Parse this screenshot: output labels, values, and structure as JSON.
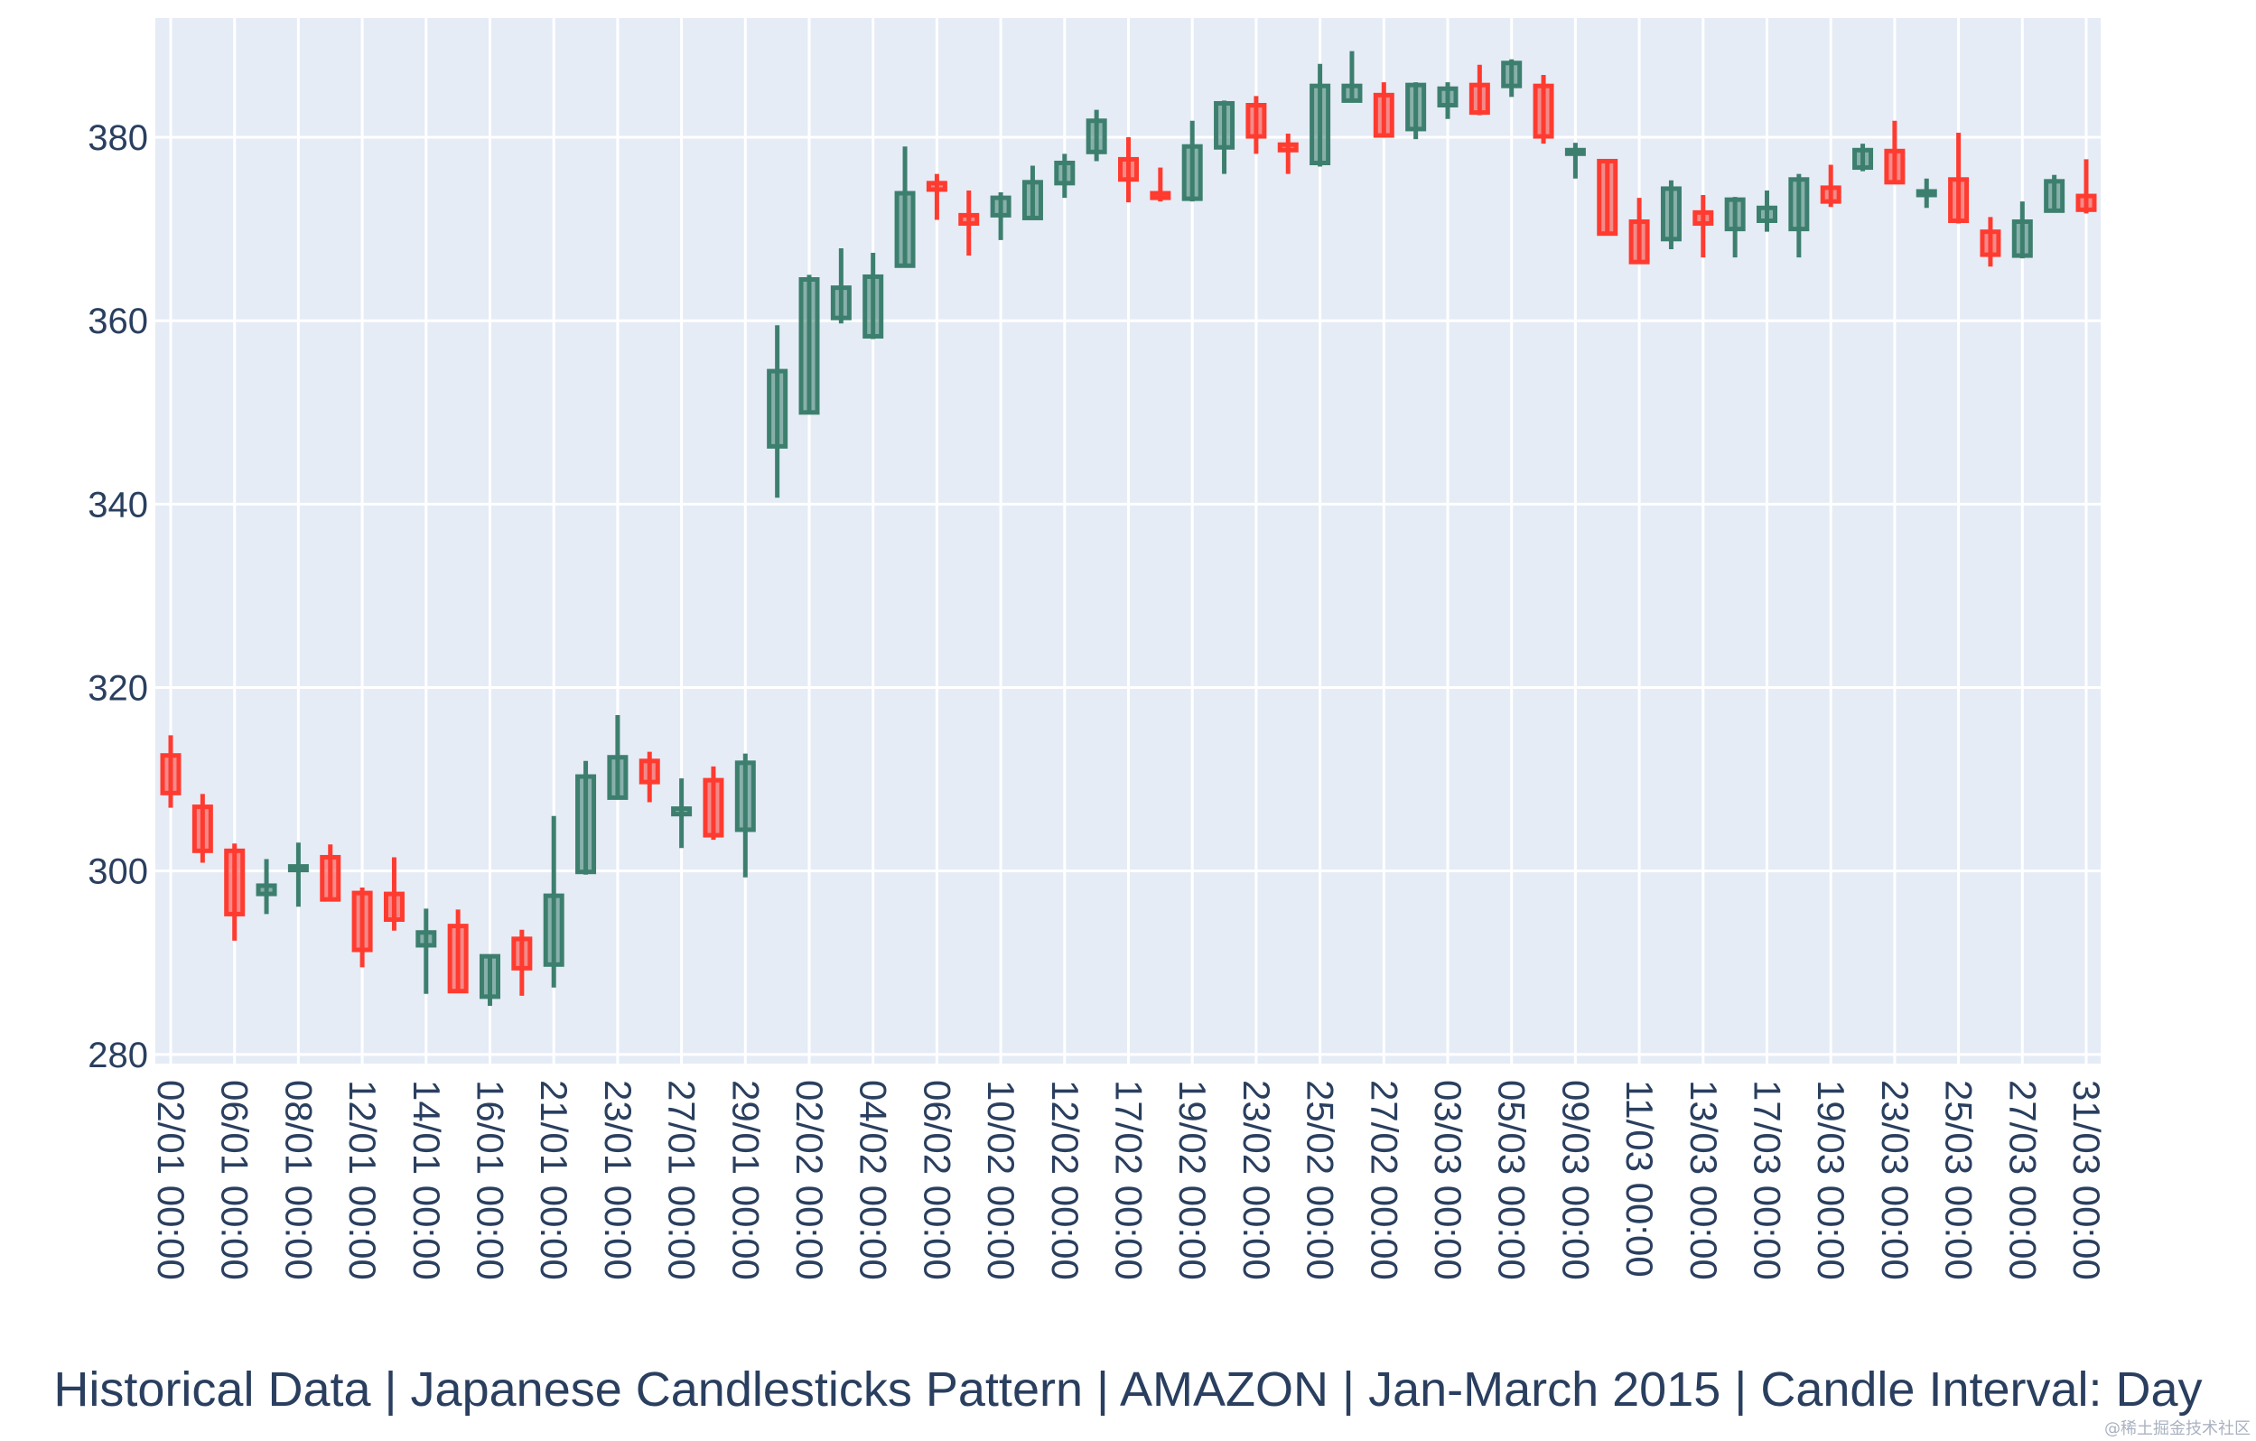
{
  "chart_data": {
    "type": "candlestick",
    "title": "Historical Data | Japanese Candlesticks Pattern | AMAZON | Jan-March 2015 | Candle Interval: Day",
    "xlabel": "",
    "ylabel": "",
    "ylim": [
      279,
      393
    ],
    "yticks": [
      280,
      300,
      320,
      340,
      360,
      380
    ],
    "grid": true,
    "colors": {
      "increasing": "#3d7f6e",
      "decreasing": "#ff3b30",
      "plot_bg": "#e5ecf6",
      "grid": "#ffffff",
      "axis_text": "#2a3f5f"
    },
    "tick_labels": [
      "02/01 00:00",
      "06/01 00:00",
      "08/01 00:00",
      "12/01 00:00",
      "14/01 00:00",
      "16/01 00:00",
      "21/01 00:00",
      "23/01 00:00",
      "27/01 00:00",
      "29/01 00:00",
      "02/02 00:00",
      "04/02 00:00",
      "06/02 00:00",
      "10/02 00:00",
      "12/02 00:00",
      "17/02 00:00",
      "19/02 00:00",
      "23/02 00:00",
      "25/02 00:00",
      "27/02 00:00",
      "03/03 00:00",
      "05/03 00:00",
      "09/03 00:00",
      "11/03 00:00",
      "13/03 00:00",
      "17/03 00:00",
      "19/03 00:00",
      "23/03 00:00",
      "25/03 00:00",
      "27/03 00:00",
      "31/03 00:00"
    ],
    "candles": [
      {
        "date": "02/01",
        "open": 312.6,
        "high": 314.8,
        "low": 306.9,
        "close": 308.5
      },
      {
        "date": "05/01",
        "open": 307.0,
        "high": 308.4,
        "low": 300.9,
        "close": 302.2
      },
      {
        "date": "06/01",
        "open": 302.2,
        "high": 303.0,
        "low": 292.4,
        "close": 295.3
      },
      {
        "date": "07/01",
        "open": 297.5,
        "high": 301.3,
        "low": 295.3,
        "close": 298.4
      },
      {
        "date": "08/01",
        "open": 300.3,
        "high": 303.1,
        "low": 296.1,
        "close": 300.5
      },
      {
        "date": "09/01",
        "open": 301.5,
        "high": 302.9,
        "low": 296.7,
        "close": 296.9
      },
      {
        "date": "12/01",
        "open": 297.6,
        "high": 298.2,
        "low": 289.5,
        "close": 291.4
      },
      {
        "date": "13/01",
        "open": 297.5,
        "high": 301.5,
        "low": 293.5,
        "close": 294.7
      },
      {
        "date": "14/01",
        "open": 291.9,
        "high": 295.9,
        "low": 286.6,
        "close": 293.3
      },
      {
        "date": "15/01",
        "open": 294.0,
        "high": 295.8,
        "low": 286.8,
        "close": 286.9
      },
      {
        "date": "16/01",
        "open": 286.3,
        "high": 290.8,
        "low": 285.3,
        "close": 290.7
      },
      {
        "date": "20/01",
        "open": 292.6,
        "high": 293.6,
        "low": 286.4,
        "close": 289.4
      },
      {
        "date": "21/01",
        "open": 289.8,
        "high": 306.0,
        "low": 287.3,
        "close": 297.3
      },
      {
        "date": "22/01",
        "open": 299.9,
        "high": 312.0,
        "low": 299.6,
        "close": 310.3
      },
      {
        "date": "23/01",
        "open": 308.0,
        "high": 317.0,
        "low": 307.9,
        "close": 312.4
      },
      {
        "date": "26/01",
        "open": 312.0,
        "high": 313.0,
        "low": 307.5,
        "close": 309.7
      },
      {
        "date": "27/01",
        "open": 306.2,
        "high": 310.1,
        "low": 302.5,
        "close": 306.8
      },
      {
        "date": "28/01",
        "open": 309.9,
        "high": 311.4,
        "low": 303.4,
        "close": 303.9
      },
      {
        "date": "29/01",
        "open": 304.5,
        "high": 312.8,
        "low": 299.3,
        "close": 311.8
      },
      {
        "date": "30/01",
        "open": 346.3,
        "high": 359.5,
        "low": 340.7,
        "close": 354.5
      },
      {
        "date": "02/02",
        "open": 350.0,
        "high": 365.0,
        "low": 349.9,
        "close": 364.5
      },
      {
        "date": "03/02",
        "open": 360.3,
        "high": 367.9,
        "low": 359.7,
        "close": 363.6
      },
      {
        "date": "04/02",
        "open": 358.3,
        "high": 367.4,
        "low": 358.0,
        "close": 364.8
      },
      {
        "date": "05/02",
        "open": 366.0,
        "high": 379.0,
        "low": 365.8,
        "close": 373.9
      },
      {
        "date": "06/02",
        "open": 375.0,
        "high": 376.0,
        "low": 371.0,
        "close": 374.3
      },
      {
        "date": "09/02",
        "open": 371.5,
        "high": 374.2,
        "low": 367.1,
        "close": 370.6
      },
      {
        "date": "10/02",
        "open": 371.5,
        "high": 374.0,
        "low": 368.8,
        "close": 373.4
      },
      {
        "date": "11/02",
        "open": 371.2,
        "high": 376.9,
        "low": 371.0,
        "close": 375.1
      },
      {
        "date": "12/02",
        "open": 375.0,
        "high": 378.2,
        "low": 373.4,
        "close": 377.2
      },
      {
        "date": "13/02",
        "open": 378.4,
        "high": 383.0,
        "low": 377.4,
        "close": 381.8
      },
      {
        "date": "17/02",
        "open": 377.6,
        "high": 380.0,
        "low": 372.9,
        "close": 375.4
      },
      {
        "date": "18/02",
        "open": 373.9,
        "high": 376.7,
        "low": 373.0,
        "close": 373.4
      },
      {
        "date": "19/02",
        "open": 373.3,
        "high": 381.8,
        "low": 373.0,
        "close": 379.0
      },
      {
        "date": "20/02",
        "open": 378.9,
        "high": 384.0,
        "low": 376.0,
        "close": 383.7
      },
      {
        "date": "23/02",
        "open": 383.5,
        "high": 384.5,
        "low": 378.2,
        "close": 380.1
      },
      {
        "date": "24/02",
        "open": 379.2,
        "high": 380.4,
        "low": 376.0,
        "close": 378.6
      },
      {
        "date": "25/02",
        "open": 377.2,
        "high": 388.0,
        "low": 376.8,
        "close": 385.6
      },
      {
        "date": "26/02",
        "open": 384.0,
        "high": 389.4,
        "low": 383.8,
        "close": 385.6
      },
      {
        "date": "27/02",
        "open": 384.6,
        "high": 386.0,
        "low": 380.0,
        "close": 380.2
      },
      {
        "date": "02/03",
        "open": 380.9,
        "high": 386.0,
        "low": 379.8,
        "close": 385.7
      },
      {
        "date": "03/03",
        "open": 383.5,
        "high": 386.0,
        "low": 382.0,
        "close": 385.3
      },
      {
        "date": "04/03",
        "open": 385.7,
        "high": 387.9,
        "low": 382.4,
        "close": 382.7
      },
      {
        "date": "05/03",
        "open": 385.6,
        "high": 388.5,
        "low": 384.4,
        "close": 388.1
      },
      {
        "date": "06/03",
        "open": 385.6,
        "high": 386.8,
        "low": 379.3,
        "close": 380.1
      },
      {
        "date": "09/03",
        "open": 378.6,
        "high": 379.4,
        "low": 375.5,
        "close": 378.6
      },
      {
        "date": "10/03",
        "open": 377.4,
        "high": 377.5,
        "low": 369.4,
        "close": 369.5
      },
      {
        "date": "11/03",
        "open": 370.8,
        "high": 373.4,
        "low": 366.3,
        "close": 366.4
      },
      {
        "date": "12/03",
        "open": 368.9,
        "high": 375.3,
        "low": 367.8,
        "close": 374.4
      },
      {
        "date": "13/03",
        "open": 371.8,
        "high": 373.7,
        "low": 366.9,
        "close": 370.6
      },
      {
        "date": "16/03",
        "open": 370.0,
        "high": 373.5,
        "low": 366.9,
        "close": 373.2
      },
      {
        "date": "17/03",
        "open": 370.9,
        "high": 374.2,
        "low": 369.7,
        "close": 372.3
      },
      {
        "date": "18/03",
        "open": 370.0,
        "high": 376.0,
        "low": 366.9,
        "close": 375.4
      },
      {
        "date": "19/03",
        "open": 374.5,
        "high": 377.0,
        "low": 372.4,
        "close": 373.0
      },
      {
        "date": "20/03",
        "open": 376.7,
        "high": 379.3,
        "low": 376.3,
        "close": 378.6
      },
      {
        "date": "23/03",
        "open": 378.5,
        "high": 381.8,
        "low": 375.0,
        "close": 375.1
      },
      {
        "date": "24/03",
        "open": 374.0,
        "high": 375.5,
        "low": 372.3,
        "close": 374.1
      },
      {
        "date": "25/03",
        "open": 375.4,
        "high": 380.5,
        "low": 370.6,
        "close": 370.9
      },
      {
        "date": "26/03",
        "open": 369.7,
        "high": 371.3,
        "low": 365.9,
        "close": 367.2
      },
      {
        "date": "27/03",
        "open": 367.1,
        "high": 373.0,
        "low": 366.8,
        "close": 370.8
      },
      {
        "date": "30/03",
        "open": 372.0,
        "high": 375.9,
        "low": 371.8,
        "close": 375.2
      },
      {
        "date": "31/03",
        "open": 373.6,
        "high": 377.6,
        "low": 371.7,
        "close": 372.1
      }
    ]
  },
  "watermark": "@稀土掘金技术社区"
}
